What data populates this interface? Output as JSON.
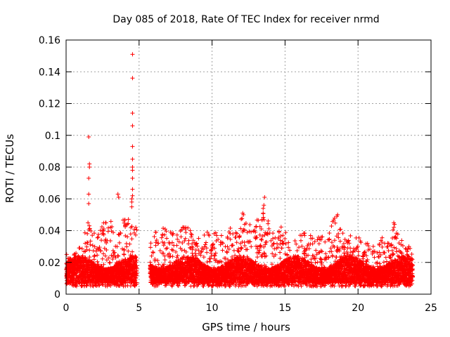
{
  "chart_data": {
    "type": "scatter",
    "title": "Day 085 of 2018, Rate Of TEC Index for receiver nrmd",
    "xlabel": "GPS time / hours",
    "ylabel": "ROTI / TECUs",
    "xlim": [
      0,
      25
    ],
    "ylim": [
      0,
      0.16
    ],
    "x_ticks": [
      0,
      5,
      10,
      15,
      20,
      25
    ],
    "x_tick_labels": [
      "0",
      "5",
      "10",
      "15",
      "20",
      "25"
    ],
    "y_ticks": [
      0,
      0.02,
      0.04,
      0.06,
      0.08,
      0.1,
      0.12,
      0.14,
      0.16
    ],
    "y_tick_labels": [
      "0",
      "0.02",
      "0.04",
      "0.06",
      "0.08",
      "0.1",
      "0.12",
      "0.14",
      "0.16"
    ],
    "grid": true,
    "marker": "+",
    "marker_color": "#ff0000",
    "series": [
      {
        "name": "nrmd",
        "data_gap_hours": [
          4.85,
          5.75
        ],
        "data_end_hour": 23.75,
        "baseline_band": [
          0.005,
          0.03
        ],
        "envelope": [
          [
            0.0,
            0.028
          ],
          [
            0.5,
            0.024
          ],
          [
            1.0,
            0.032
          ],
          [
            1.5,
            0.045
          ],
          [
            2.0,
            0.038
          ],
          [
            2.5,
            0.046
          ],
          [
            3.0,
            0.048
          ],
          [
            3.5,
            0.035
          ],
          [
            4.0,
            0.05
          ],
          [
            4.5,
            0.045
          ],
          [
            5.8,
            0.042
          ],
          [
            6.5,
            0.043
          ],
          [
            7.5,
            0.038
          ],
          [
            8.0,
            0.046
          ],
          [
            9.0,
            0.036
          ],
          [
            10.0,
            0.041
          ],
          [
            11.0,
            0.039
          ],
          [
            12.0,
            0.051
          ],
          [
            12.7,
            0.043
          ],
          [
            13.5,
            0.055
          ],
          [
            14.2,
            0.038
          ],
          [
            15.0,
            0.045
          ],
          [
            15.5,
            0.032
          ],
          [
            16.5,
            0.042
          ],
          [
            17.5,
            0.036
          ],
          [
            18.5,
            0.05
          ],
          [
            19.0,
            0.04
          ],
          [
            20.0,
            0.036
          ],
          [
            21.0,
            0.032
          ],
          [
            22.0,
            0.038
          ],
          [
            22.5,
            0.045
          ],
          [
            23.0,
            0.034
          ],
          [
            23.7,
            0.03
          ]
        ],
        "spikes": [
          [
            1.55,
            0.099
          ],
          [
            1.6,
            0.082
          ],
          [
            1.6,
            0.08
          ],
          [
            1.55,
            0.073
          ],
          [
            1.55,
            0.063
          ],
          [
            1.55,
            0.057
          ],
          [
            1.5,
            0.045
          ],
          [
            3.55,
            0.063
          ],
          [
            3.6,
            0.061
          ],
          [
            4.55,
            0.151
          ],
          [
            4.55,
            0.136
          ],
          [
            4.55,
            0.114
          ],
          [
            4.55,
            0.106
          ],
          [
            4.55,
            0.093
          ],
          [
            4.55,
            0.085
          ],
          [
            4.55,
            0.08
          ],
          [
            4.55,
            0.078
          ],
          [
            4.55,
            0.073
          ],
          [
            4.55,
            0.066
          ],
          [
            4.55,
            0.062
          ],
          [
            4.5,
            0.06
          ],
          [
            4.5,
            0.058
          ],
          [
            4.5,
            0.055
          ],
          [
            13.6,
            0.061
          ],
          [
            13.55,
            0.056
          ],
          [
            13.5,
            0.054
          ],
          [
            13.5,
            0.051
          ],
          [
            12.1,
            0.051
          ],
          [
            12.15,
            0.05
          ],
          [
            18.6,
            0.05
          ],
          [
            18.55,
            0.049
          ],
          [
            22.5,
            0.044
          ],
          [
            22.45,
            0.045
          ]
        ]
      }
    ]
  }
}
